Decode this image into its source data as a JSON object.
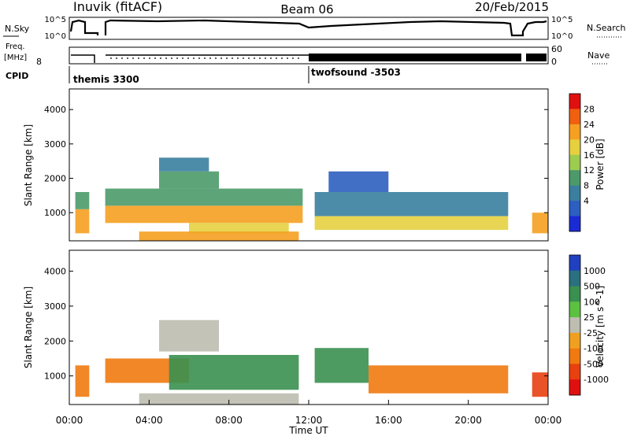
{
  "header": {
    "site": "Inuvik (fitACF)",
    "beam": "Beam 06",
    "date": "20/Feb/2015"
  },
  "noise_panel": {
    "left_label": "N.Sky",
    "right_label": "N.Search",
    "left_ticks": [
      "10^5",
      "10^0"
    ],
    "right_ticks": [
      "10^5",
      "10^0"
    ]
  },
  "freq_panel": {
    "left_label_1": "Freq.",
    "left_label_2": "[MHz]",
    "left_ticks": [
      "8"
    ],
    "right_label": "Nave",
    "right_ticks": [
      "60",
      "0"
    ]
  },
  "cpid_panel": {
    "label": "CPID",
    "segments": [
      {
        "name": "themis 3300",
        "start_hour": 0
      },
      {
        "name": "twofsound -3503",
        "start_hour": 12
      }
    ]
  },
  "time_axis": {
    "label": "Time UT",
    "ticks": [
      "00:00",
      "04:00",
      "08:00",
      "12:00",
      "16:00",
      "20:00",
      "00:00"
    ]
  },
  "chart_data": [
    {
      "type": "heatmap",
      "panel": "power",
      "ylabel": "Slant Range [km]",
      "yticks": [
        1000,
        2000,
        3000,
        4000
      ],
      "ylim": [
        180,
        4600
      ],
      "xlim_hours": [
        0,
        24
      ],
      "colorbar": {
        "label": "Power [dB]",
        "ticks": [
          "4",
          "8",
          "12",
          "16",
          "20",
          "24",
          "28"
        ],
        "colors": [
          "#1a2bd6",
          "#2c5fc0",
          "#3a7fa0",
          "#4c9a6a",
          "#9ccc50",
          "#e6d040",
          "#f5a020",
          "#f06010",
          "#e01010"
        ]
      },
      "regions": [
        {
          "x": [
            0.3,
            1.0
          ],
          "y": [
            400,
            1100
          ],
          "v": 26
        },
        {
          "x": [
            0.3,
            1.0
          ],
          "y": [
            1100,
            1600
          ],
          "v": 12
        },
        {
          "x": [
            1.8,
            11.7
          ],
          "y": [
            700,
            1200
          ],
          "v": 25
        },
        {
          "x": [
            1.8,
            11.7
          ],
          "y": [
            1200,
            1700
          ],
          "v": 13
        },
        {
          "x": [
            4.5,
            7.5
          ],
          "y": [
            1700,
            2200
          ],
          "v": 14
        },
        {
          "x": [
            4.5,
            7.0
          ],
          "y": [
            2200,
            2600
          ],
          "v": 8
        },
        {
          "x": [
            6.0,
            11.0
          ],
          "y": [
            400,
            700
          ],
          "v": 22
        },
        {
          "x": [
            3.5,
            11.5
          ],
          "y": [
            180,
            450
          ],
          "v": 27
        },
        {
          "x": [
            12.3,
            22.0
          ],
          "y": [
            500,
            900
          ],
          "v": 22
        },
        {
          "x": [
            12.3,
            22.0
          ],
          "y": [
            900,
            1600
          ],
          "v": 10
        },
        {
          "x": [
            13.0,
            16.0
          ],
          "y": [
            1600,
            2200
          ],
          "v": 6
        },
        {
          "x": [
            23.2,
            24.0
          ],
          "y": [
            400,
            1000
          ],
          "v": 26
        }
      ]
    },
    {
      "type": "heatmap",
      "panel": "velocity",
      "ylabel": "Slant Range [km]",
      "yticks": [
        1000,
        2000,
        3000,
        4000
      ],
      "ylim": [
        180,
        4600
      ],
      "xlim_hours": [
        0,
        24
      ],
      "colorbar": {
        "label": "Velocity [m s^-1]",
        "ticks": [
          "1000",
          "500",
          "100",
          "25",
          "-25",
          "-100",
          "-500",
          "-1000"
        ],
        "colors": [
          "#2040c0",
          "#2a7080",
          "#3a9050",
          "#5cc040",
          "#bdbdb0",
          "#f0a020",
          "#f07a10",
          "#e84010",
          "#e01010"
        ]
      },
      "regions": [
        {
          "x": [
            0.3,
            1.0
          ],
          "y": [
            400,
            1300
          ],
          "v": -150
        },
        {
          "x": [
            1.8,
            6.0
          ],
          "y": [
            800,
            1500
          ],
          "v": -150
        },
        {
          "x": [
            5.0,
            11.5
          ],
          "y": [
            600,
            1600
          ],
          "v": 200
        },
        {
          "x": [
            4.5,
            7.5
          ],
          "y": [
            1700,
            2600
          ],
          "v": 0
        },
        {
          "x": [
            3.5,
            11.5
          ],
          "y": [
            180,
            500
          ],
          "v": 0
        },
        {
          "x": [
            12.3,
            15.0
          ],
          "y": [
            800,
            1800
          ],
          "v": 250
        },
        {
          "x": [
            15.0,
            22.0
          ],
          "y": [
            500,
            1300
          ],
          "v": -200
        },
        {
          "x": [
            23.2,
            24.0
          ],
          "y": [
            400,
            1100
          ],
          "v": -600
        }
      ]
    }
  ]
}
